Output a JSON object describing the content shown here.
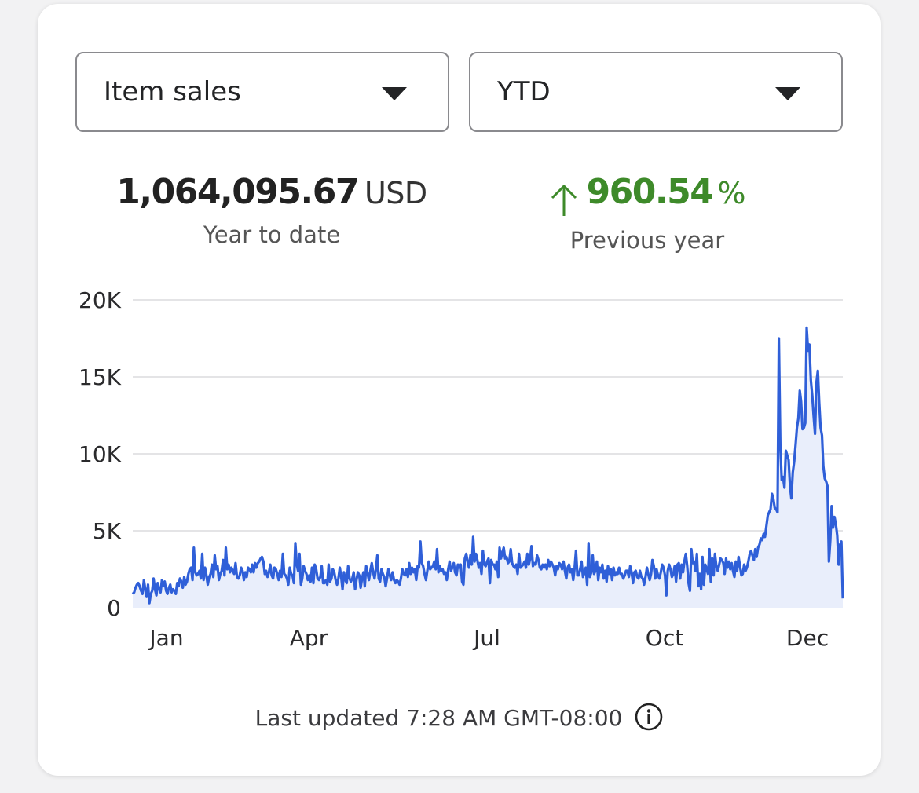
{
  "controls": {
    "metric_select": {
      "value": "Item sales"
    },
    "period_select": {
      "value": "YTD"
    }
  },
  "summary": {
    "total_value": "1,064,095.67",
    "total_unit": "USD",
    "total_label": "Year to date",
    "change_value": "960.54",
    "change_unit": "%",
    "change_label": "Previous year",
    "change_direction": "up",
    "change_color": "#3e8a2a"
  },
  "chart_data": {
    "type": "area",
    "y_ticks": [
      "0",
      "5K",
      "10K",
      "15K",
      "20K"
    ],
    "ylim": [
      0,
      20000
    ],
    "x_ticks": [
      "Jan",
      "Apr",
      "Jul",
      "Oct",
      "Dec"
    ],
    "grid": true,
    "line_color": "#2f5fd8",
    "fill_color": "#e9eefb",
    "series": [
      {
        "values": [
          900,
          1000,
          1300,
          1500,
          1600,
          1400,
          1100,
          900,
          1800,
          1200,
          700,
          1500,
          300,
          900,
          1100,
          1900,
          1200,
          800,
          1600,
          1200,
          1000,
          1800,
          1400,
          1700,
          1100,
          900,
          1300,
          1500,
          1000,
          1200,
          1100,
          900,
          1600,
          1400,
          1900,
          1700,
          1300,
          2000,
          1500,
          1700,
          2200,
          2500,
          2600,
          1800,
          3900,
          2300,
          2100,
          2200,
          2400,
          1900,
          3500,
          1800,
          2600,
          2100,
          1500,
          2000,
          2200,
          2800,
          2000,
          3400,
          2500,
          2700,
          1800,
          2200,
          2400,
          3100,
          2100,
          3900,
          2500,
          2800,
          2300,
          2600,
          2400,
          2200,
          2900,
          2000,
          1900,
          2100,
          2600,
          2400,
          1800,
          2300,
          2000,
          2600,
          2500,
          2300,
          2800,
          2300,
          2900,
          2600,
          2900,
          3000,
          3200,
          3300,
          3000,
          2200,
          2400,
          2000,
          2300,
          2800,
          2100,
          1900,
          2600,
          2500,
          2200,
          1800,
          2400,
          2000,
          3500,
          2200,
          2100,
          1900,
          1500,
          2600,
          2200,
          2100,
          1600,
          4200,
          2800,
          2400,
          3500,
          1500,
          1900,
          2700,
          2400,
          2200,
          1800,
          2100,
          1700,
          2600,
          1600,
          2800,
          2500,
          1900,
          1800,
          2000,
          2700,
          1600,
          1600,
          1800,
          1500,
          2800,
          1700,
          1900,
          2500,
          2300,
          1800,
          1500,
          1900,
          2600,
          2000,
          1200,
          2300,
          1800,
          1600,
          2700,
          1900,
          1700,
          1900,
          2300,
          1200,
          1800,
          2300,
          2100,
          1300,
          1900,
          2300,
          1400,
          2700,
          2200,
          1800,
          2400,
          2900,
          2300,
          1900,
          2500,
          3400,
          1900,
          1700,
          2500,
          2200,
          2000,
          1400,
          1900,
          2500,
          2100,
          1800,
          2300,
          1800,
          1600,
          1800,
          1700,
          1500,
          1900,
          2500,
          2200,
          2100,
          2500,
          2000,
          2900,
          2200,
          2600,
          2300,
          2500,
          1800,
          2700,
          2600,
          4300,
          2900,
          2700,
          2200,
          1800,
          2400,
          3000,
          2500,
          2600,
          2700,
          3000,
          2500,
          3800,
          2300,
          2700,
          2400,
          2500,
          2200,
          2300,
          1800,
          2500,
          3000,
          2400,
          2600,
          2900,
          2300,
          2100,
          2800,
          2600,
          2800,
          1700,
          1500,
          3200,
          3500,
          3000,
          2600,
          3400,
          2800,
          4600,
          3000,
          3500,
          3100,
          2600,
          2900,
          2200,
          3700,
          2800,
          2700,
          3000,
          3200,
          1600,
          3100,
          2800,
          2800,
          2500,
          3000,
          2000,
          3900,
          3200,
          3600,
          3900,
          3200,
          3300,
          2900,
          3000,
          3800,
          2900,
          2700,
          2600,
          2800,
          2200,
          3500,
          2600,
          2700,
          2800,
          3000,
          2600,
          3500,
          2800,
          3200,
          4000,
          2700,
          2900,
          2800,
          3400,
          3100,
          2600,
          2500,
          2800,
          2600,
          2800,
          2500,
          3100,
          2700,
          3000,
          2800,
          2600,
          2100,
          2700,
          2500,
          2900,
          2800,
          2500,
          3000,
          2400,
          1900,
          2600,
          2800,
          2300,
          2500,
          1800,
          2600,
          3700,
          2100,
          2100,
          2500,
          3000,
          2000,
          2300,
          2600,
          1500,
          4200,
          2000,
          2300,
          3400,
          2200,
          2400,
          3000,
          1800,
          2600,
          2300,
          2800,
          1900,
          2400,
          1700,
          2700,
          2200,
          2500,
          1800,
          2600,
          2100,
          2300,
          2200,
          2600,
          2200,
          2200,
          1900,
          2100,
          2400,
          2400,
          2000,
          2700,
          2300,
          1600,
          2300,
          2400,
          2000,
          1900,
          2400,
          2000,
          1900,
          1500,
          2000,
          2600,
          2200,
          1800,
          2200,
          3100,
          2700,
          1900,
          2500,
          2100,
          1900,
          2300,
          2800,
          2600,
          2100,
          800,
          2400,
          2800,
          2500,
          2000,
          2200,
          2700,
          1700,
          2800,
          2900,
          1900,
          2800,
          2300,
          3000,
          3500,
          2700,
          1600,
          1100,
          3800,
          2900,
          3000,
          2400,
          3500,
          1400,
          2200,
          1200,
          3300,
          1500,
          2800,
          2500,
          2200,
          3800,
          1700,
          3200,
          2100,
          3500,
          2700,
          2400,
          2800,
          3200,
          3100,
          2900,
          2200,
          3200,
          2600,
          3000,
          2500,
          2900,
          2400,
          2000,
          3000,
          2400,
          3300,
          2700,
          2100,
          2200,
          2800,
          2400,
          2600,
          3000,
          3500,
          3700,
          3400,
          3100,
          3800,
          3300,
          3900,
          4100,
          4500,
          4400,
          4800,
          4600,
          5300,
          6000,
          6200,
          6400,
          7400,
          7100,
          6500,
          6400,
          6200,
          17500,
          10600,
          8300,
          8500,
          7800,
          10200,
          9900,
          9600,
          7900,
          7100,
          8800,
          9500,
          10600,
          11700,
          12300,
          14100,
          13400,
          11600,
          11700,
          12000,
          18200,
          16700,
          17100,
          14800,
          13800,
          12500,
          11300,
          14600,
          15400,
          13400,
          11700,
          11200,
          9200,
          8400,
          8200,
          7900,
          3000,
          4400,
          6600,
          5200,
          5900,
          5400,
          4700,
          2800,
          4100,
          4300,
          600
        ]
      }
    ]
  },
  "footer": {
    "last_updated": "Last updated 7:28 AM GMT-08:00",
    "info_icon": "info-icon"
  }
}
